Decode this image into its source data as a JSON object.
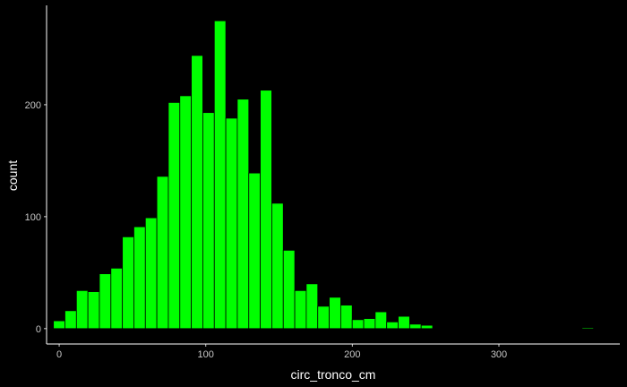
{
  "chart_data": {
    "type": "bar",
    "subtype": "histogram",
    "title": "",
    "xlabel": "circ_tronco_cm",
    "ylabel": "count",
    "bin_width": 7.84,
    "bin_centers": [
      0,
      7.84,
      15.68,
      23.52,
      31.36,
      39.2,
      47.04,
      54.88,
      62.72,
      70.56,
      78.4,
      86.24,
      94.08,
      101.92,
      109.76,
      117.6,
      125.44,
      133.28,
      141.12,
      148.96,
      156.8,
      164.64,
      172.48,
      180.32,
      188.16,
      196,
      203.84,
      211.68,
      219.52,
      227.36,
      235.2,
      243.04,
      250.88,
      258.72,
      266.56,
      274.4,
      282.24,
      290.08,
      297.92,
      305.76,
      313.6,
      321.44,
      329.28,
      337.12,
      344.96,
      352.8,
      360.64
    ],
    "counts": [
      7,
      16,
      34,
      33,
      49,
      54,
      82,
      91,
      99,
      136,
      202,
      208,
      244,
      193,
      275,
      188,
      205,
      139,
      213,
      112,
      70,
      34,
      40,
      20,
      28,
      21,
      8,
      9,
      15,
      6,
      11,
      4,
      3,
      0,
      0,
      0,
      0,
      0,
      0,
      0,
      0,
      0,
      0,
      0,
      0,
      0,
      1
    ],
    "xticks": [
      0,
      100,
      200,
      300
    ],
    "xtick_labels": [
      "0",
      "100",
      "200",
      "300"
    ],
    "yticks": [
      0,
      100,
      200
    ],
    "ytick_labels": [
      "0",
      "100",
      "200"
    ],
    "xlim": [
      -8.6,
      382.5
    ],
    "ylim": [
      -13.75,
      288.75
    ],
    "grid": false,
    "legend": "none",
    "colors": {
      "background": "#000000",
      "bar_fill": "#00ff00",
      "bar_outline": "#000000",
      "axis_line": "#ffffff",
      "tick_label": "#c8c8c8",
      "axis_title": "#ffffff"
    }
  }
}
